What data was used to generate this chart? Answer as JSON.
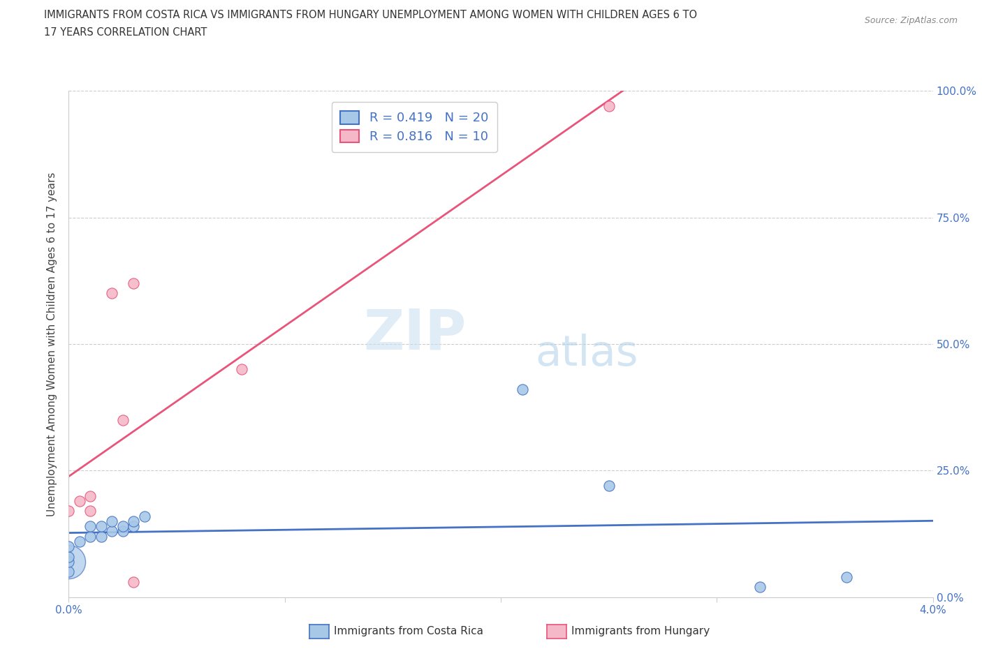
{
  "title_line1": "IMMIGRANTS FROM COSTA RICA VS IMMIGRANTS FROM HUNGARY UNEMPLOYMENT AMONG WOMEN WITH CHILDREN AGES 6 TO",
  "title_line2": "17 YEARS CORRELATION CHART",
  "source": "Source: ZipAtlas.com",
  "ylabel": "Unemployment Among Women with Children Ages 6 to 17 years",
  "xmin": 0.0,
  "xmax": 0.04,
  "ymin": 0.0,
  "ymax": 1.0,
  "x_ticks": [
    0.0,
    0.01,
    0.02,
    0.03,
    0.04
  ],
  "y_ticks": [
    0.0,
    0.25,
    0.5,
    0.75,
    1.0
  ],
  "y_tick_labels": [
    "0.0%",
    "25.0%",
    "50.0%",
    "75.0%",
    "100.0%"
  ],
  "costa_rica_x": [
    0.0,
    0.0,
    0.0,
    0.0,
    0.0005,
    0.001,
    0.001,
    0.0015,
    0.0015,
    0.002,
    0.002,
    0.0025,
    0.0025,
    0.003,
    0.003,
    0.0035,
    0.021,
    0.025,
    0.032,
    0.036
  ],
  "costa_rica_y": [
    0.05,
    0.07,
    0.08,
    0.1,
    0.11,
    0.12,
    0.14,
    0.12,
    0.14,
    0.13,
    0.15,
    0.13,
    0.14,
    0.14,
    0.15,
    0.16,
    0.41,
    0.22,
    0.02,
    0.04
  ],
  "hungary_x": [
    0.0,
    0.0005,
    0.001,
    0.001,
    0.002,
    0.0025,
    0.003,
    0.003,
    0.008,
    0.025
  ],
  "hungary_y": [
    0.17,
    0.19,
    0.17,
    0.2,
    0.6,
    0.35,
    0.62,
    0.03,
    0.45,
    0.97
  ],
  "costa_rica_color": "#a8c8e8",
  "hungary_color": "#f4b8c8",
  "costa_rica_line_color": "#4472c4",
  "hungary_line_color": "#e8547a",
  "costa_rica_R": "0.419",
  "costa_rica_N": "20",
  "hungary_R": "0.816",
  "hungary_N": "10",
  "watermark_zip": "ZIP",
  "watermark_atlas": "atlas",
  "background_color": "#ffffff",
  "grid_color": "#cccccc",
  "large_marker_size": 1200,
  "marker_size": 120
}
